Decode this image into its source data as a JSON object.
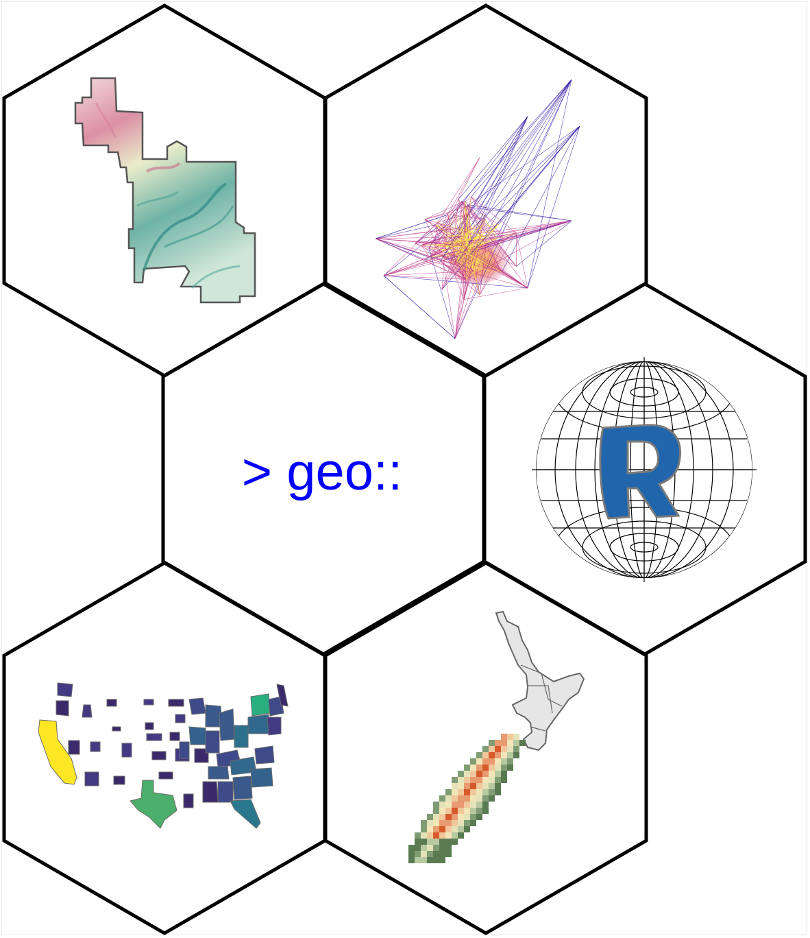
{
  "center_text": "> geo::",
  "colors": {
    "hex_stroke": "#000000",
    "text": "#0000ff",
    "r_logo": "#2166ac",
    "r_logo_outline": "#7a7a7a",
    "terrain_low": "#1f8a87",
    "terrain_mid": "#e6ecc8",
    "terrain_high": "#d97f9a",
    "network_low": "#2c0ea8",
    "network_mid": "#c03a8a",
    "network_high": "#ffe84a",
    "choropleth_low": "#440154",
    "choropleth_mid": "#31688e",
    "choropleth_mid2": "#35b779",
    "choropleth_high": "#fde725",
    "nz_north": "#e6e6e6",
    "nz_south_low": "#5a7a52",
    "nz_south_mid": "#f2e6b8",
    "nz_south_high": "#d65a2a"
  },
  "tiles": [
    {
      "name": "hex-terrain-map",
      "icon": "terrain-map-icon"
    },
    {
      "name": "hex-network-graph",
      "icon": "network-graph-icon"
    },
    {
      "name": "hex-center-text",
      "icon": ""
    },
    {
      "name": "hex-r-globe",
      "icon": "r-globe-icon"
    },
    {
      "name": "hex-us-choropleth",
      "icon": "us-choropleth-icon"
    },
    {
      "name": "hex-nz-raster",
      "icon": "nz-raster-icon"
    }
  ]
}
